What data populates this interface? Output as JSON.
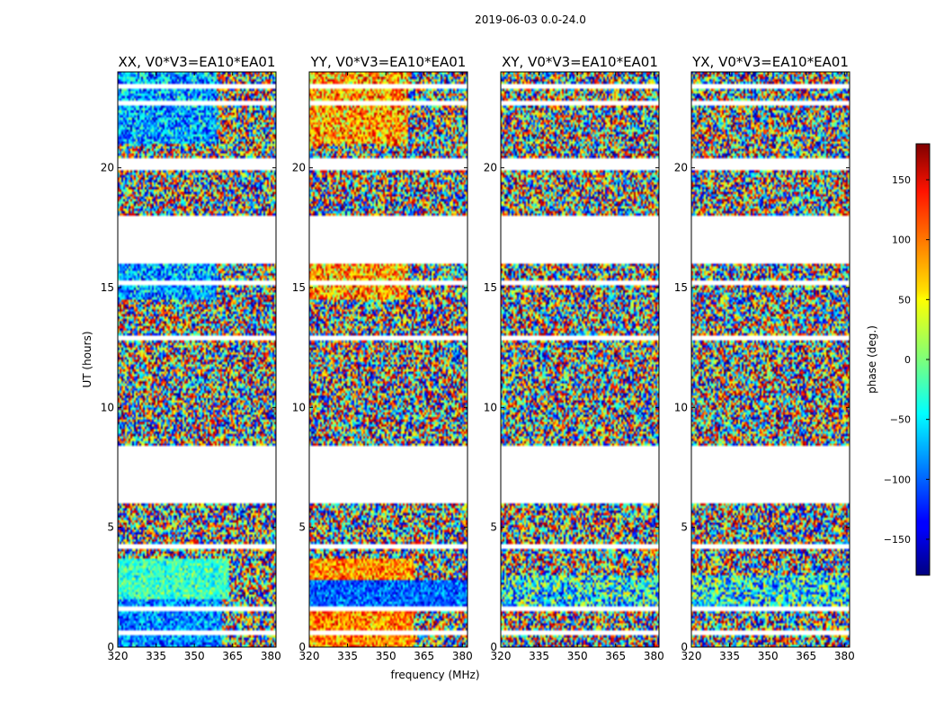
{
  "figure": {
    "suptitle": "2019-06-03 0.0-24.0"
  },
  "chart_data": {
    "type": "heatmap",
    "shared": {
      "xlabel": "frequency (MHz)",
      "ylabel": "UT (hours)",
      "xlim": [
        320,
        382
      ],
      "ylim": [
        0,
        24
      ],
      "xticks": [
        320,
        335,
        350,
        365,
        380
      ],
      "yticks": [
        0,
        5,
        10,
        15,
        20
      ],
      "colorbar": {
        "label": "phase (deg.)",
        "range": [
          -180,
          180
        ],
        "ticks": [
          -150,
          -100,
          -50,
          0,
          50,
          100,
          150
        ],
        "colormap": "jet"
      },
      "no_data_bands_ut": [
        [
          6.05,
          8.4
        ],
        [
          16.0,
          17.95
        ],
        [
          19.95,
          20.35
        ],
        [
          15.1,
          15.25
        ],
        [
          12.85,
          13.0
        ],
        [
          4.05,
          4.25
        ],
        [
          0.55,
          0.7
        ],
        [
          1.55,
          1.7
        ],
        [
          22.6,
          22.75
        ],
        [
          23.3,
          23.5
        ]
      ]
    },
    "panels": [
      {
        "title": "XX, V0*V3=EA10*EA01",
        "correlation": "XX"
      },
      {
        "title": "YY, V0*V3=EA10*EA01",
        "correlation": "YY"
      },
      {
        "title": "XY, V0*V3=EA10*EA01",
        "correlation": "XY"
      },
      {
        "title": "YX, V0*V3=EA10*EA01",
        "correlation": "YX"
      }
    ]
  }
}
